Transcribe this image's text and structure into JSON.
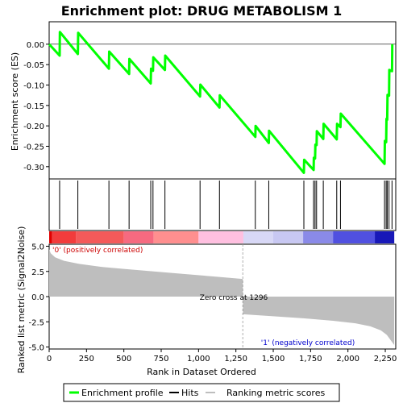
{
  "chart_data": {
    "type": "line",
    "title": "Enrichment plot: DRUG METABOLISM 1",
    "top_panel": {
      "ylabel": "Enrichment score (ES)",
      "ylim": [
        -0.33,
        0.055
      ],
      "yticks": [
        0.0,
        -0.05,
        -0.1,
        -0.15,
        -0.2,
        -0.25,
        -0.3
      ],
      "ytick_labels": [
        "0.00",
        "-0.05",
        "-0.10",
        "-0.15",
        "-0.20",
        "-0.25",
        "-0.30"
      ],
      "series": {
        "name": "Enrichment profile",
        "color": "#00ff00",
        "points": [
          [
            0,
            0.0
          ],
          [
            70,
            -0.028
          ],
          [
            72,
            0.03
          ],
          [
            192,
            -0.024
          ],
          [
            194,
            0.028
          ],
          [
            400,
            -0.06
          ],
          [
            402,
            -0.018
          ],
          [
            535,
            -0.073
          ],
          [
            537,
            -0.036
          ],
          [
            680,
            -0.096
          ],
          [
            682,
            -0.06
          ],
          [
            695,
            -0.065
          ],
          [
            697,
            -0.032
          ],
          [
            775,
            -0.063
          ],
          [
            777,
            -0.028
          ],
          [
            1010,
            -0.128
          ],
          [
            1012,
            -0.099
          ],
          [
            1140,
            -0.155
          ],
          [
            1142,
            -0.125
          ],
          [
            1380,
            -0.227
          ],
          [
            1382,
            -0.2
          ],
          [
            1470,
            -0.242
          ],
          [
            1472,
            -0.212
          ],
          [
            1705,
            -0.315
          ],
          [
            1707,
            -0.283
          ],
          [
            1770,
            -0.308
          ],
          [
            1772,
            -0.278
          ],
          [
            1780,
            -0.28
          ],
          [
            1782,
            -0.246
          ],
          [
            1790,
            -0.247
          ],
          [
            1792,
            -0.213
          ],
          [
            1835,
            -0.232
          ],
          [
            1837,
            -0.195
          ],
          [
            1925,
            -0.233
          ],
          [
            1927,
            -0.195
          ],
          [
            1950,
            -0.203
          ],
          [
            1952,
            -0.17
          ],
          [
            2245,
            -0.293
          ],
          [
            2247,
            -0.237
          ],
          [
            2256,
            -0.24
          ],
          [
            2258,
            -0.183
          ],
          [
            2263,
            -0.185
          ],
          [
            2265,
            -0.124
          ],
          [
            2275,
            -0.126
          ],
          [
            2277,
            -0.063
          ],
          [
            2295,
            -0.066
          ],
          [
            2297,
            0.0
          ]
        ]
      }
    },
    "hits": [
      70,
      192,
      400,
      535,
      680,
      695,
      775,
      1010,
      1140,
      1380,
      1470,
      1705,
      1770,
      1780,
      1790,
      1835,
      1925,
      1950,
      2245,
      2256,
      2263,
      2275,
      2295
    ],
    "bottom_panel": {
      "ylabel": "Ranked list metric (Signal2Noise)",
      "xlabel": "Rank in Dataset Ordered",
      "ylim": [
        -5.2,
        5.2
      ],
      "yticks": [
        5.0,
        2.5,
        0.0,
        -2.5,
        -5.0
      ],
      "ytick_labels": [
        "5.0",
        "2.5",
        "0.0",
        "-2.5",
        "-5.0"
      ],
      "xlim": [
        0,
        2320
      ],
      "xticks": [
        0,
        250,
        500,
        750,
        1000,
        1250,
        1500,
        1750,
        2000,
        2250
      ],
      "xtick_labels": [
        "0",
        "250",
        "500",
        "750",
        "1,000",
        "1,250",
        "1,500",
        "1,750",
        "2,000",
        "2,250"
      ],
      "metric_curve": [
        [
          0,
          4.7
        ],
        [
          10,
          4.3
        ],
        [
          40,
          3.9
        ],
        [
          100,
          3.55
        ],
        [
          200,
          3.25
        ],
        [
          350,
          2.95
        ],
        [
          500,
          2.75
        ],
        [
          700,
          2.5
        ],
        [
          900,
          2.25
        ],
        [
          1100,
          2.0
        ],
        [
          1296,
          1.75
        ],
        [
          1297,
          -1.75
        ],
        [
          1500,
          -1.95
        ],
        [
          1700,
          -2.15
        ],
        [
          1900,
          -2.4
        ],
        [
          2050,
          -2.65
        ],
        [
          2150,
          -2.95
        ],
        [
          2220,
          -3.35
        ],
        [
          2260,
          -3.8
        ],
        [
          2290,
          -4.4
        ],
        [
          2310,
          -4.8
        ]
      ],
      "zero_cross_label": "Zero cross at 1296",
      "zero_cross": 1296,
      "pos_label": "'0' (positively correlated)",
      "neg_label": "'1' (negatively correlated)"
    },
    "legend": {
      "items": [
        "Enrichment profile",
        "Hits",
        "Ranking metric scores"
      ],
      "colors": [
        "#00ff00",
        "#000000",
        "#bebebe"
      ],
      "placement": "bottom"
    }
  }
}
